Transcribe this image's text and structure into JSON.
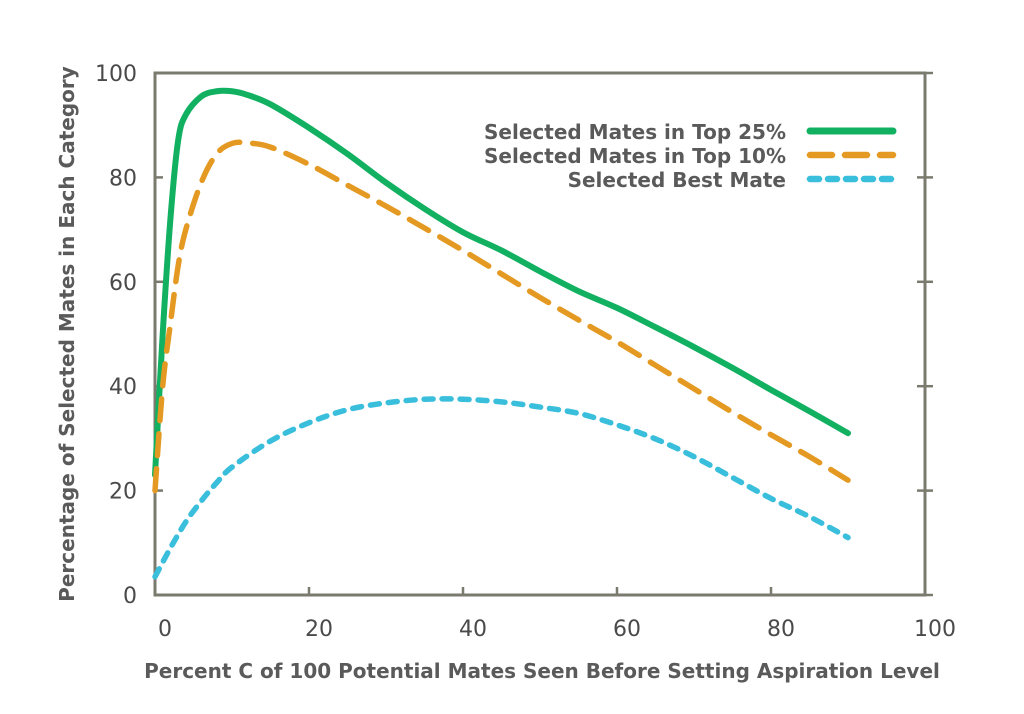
{
  "chart_data": {
    "type": "line",
    "title": "",
    "xlabel": "Percent C of 100 Potential Mates Seen Before Setting Aspiration Level",
    "ylabel": "Percentage of Selected Mates in Each Category",
    "xlim": [
      0,
      100
    ],
    "ylim": [
      0,
      100
    ],
    "xticks": [
      0,
      20,
      40,
      60,
      80,
      100
    ],
    "yticks": [
      0,
      20,
      40,
      60,
      80,
      100
    ],
    "grid": false,
    "legend_position": "top-right",
    "axis_color": "#7a7a6e",
    "series": [
      {
        "name": "Selected Mates in Top 25%",
        "color": "#12b061",
        "style": "solid",
        "x": [
          0,
          1,
          2,
          3,
          4,
          6,
          8,
          10,
          12,
          15,
          20,
          25,
          30,
          35,
          40,
          45,
          50,
          55,
          60,
          65,
          70,
          75,
          80,
          85,
          90
        ],
        "y": [
          23,
          50,
          72,
          87,
          92,
          95.5,
          96.5,
          96.5,
          95.8,
          94,
          89.5,
          84.5,
          79,
          74,
          69.5,
          66,
          62,
          58.2,
          55,
          51.3,
          47.5,
          43.5,
          39.3,
          35.2,
          31
        ]
      },
      {
        "name": "Selected Mates in Top 10%",
        "color": "#e49a22",
        "style": "dashed",
        "x": [
          0,
          1,
          2,
          3,
          4,
          6,
          8,
          10,
          12,
          15,
          20,
          25,
          30,
          35,
          40,
          45,
          50,
          55,
          60,
          65,
          70,
          75,
          80,
          85,
          90
        ],
        "y": [
          20,
          40,
          52,
          63,
          70,
          79,
          84.5,
          86.5,
          86.6,
          85.8,
          82.5,
          78.5,
          74.5,
          70.3,
          66,
          61.5,
          57,
          52.7,
          48.5,
          44,
          39.5,
          35,
          30.7,
          26.5,
          22
        ]
      },
      {
        "name": "Selected Best Mate",
        "color": "#39bedc",
        "style": "dotted",
        "x": [
          0,
          2,
          4,
          6,
          8,
          10,
          15,
          20,
          25,
          30,
          35,
          40,
          45,
          50,
          55,
          60,
          65,
          70,
          75,
          80,
          85,
          90
        ],
        "y": [
          3.5,
          9,
          14,
          18,
          21.5,
          24.5,
          29.5,
          33,
          35.5,
          36.8,
          37.5,
          37.5,
          37,
          36,
          34.8,
          32.6,
          29.9,
          26.5,
          22.5,
          18.5,
          15,
          11
        ]
      }
    ]
  }
}
